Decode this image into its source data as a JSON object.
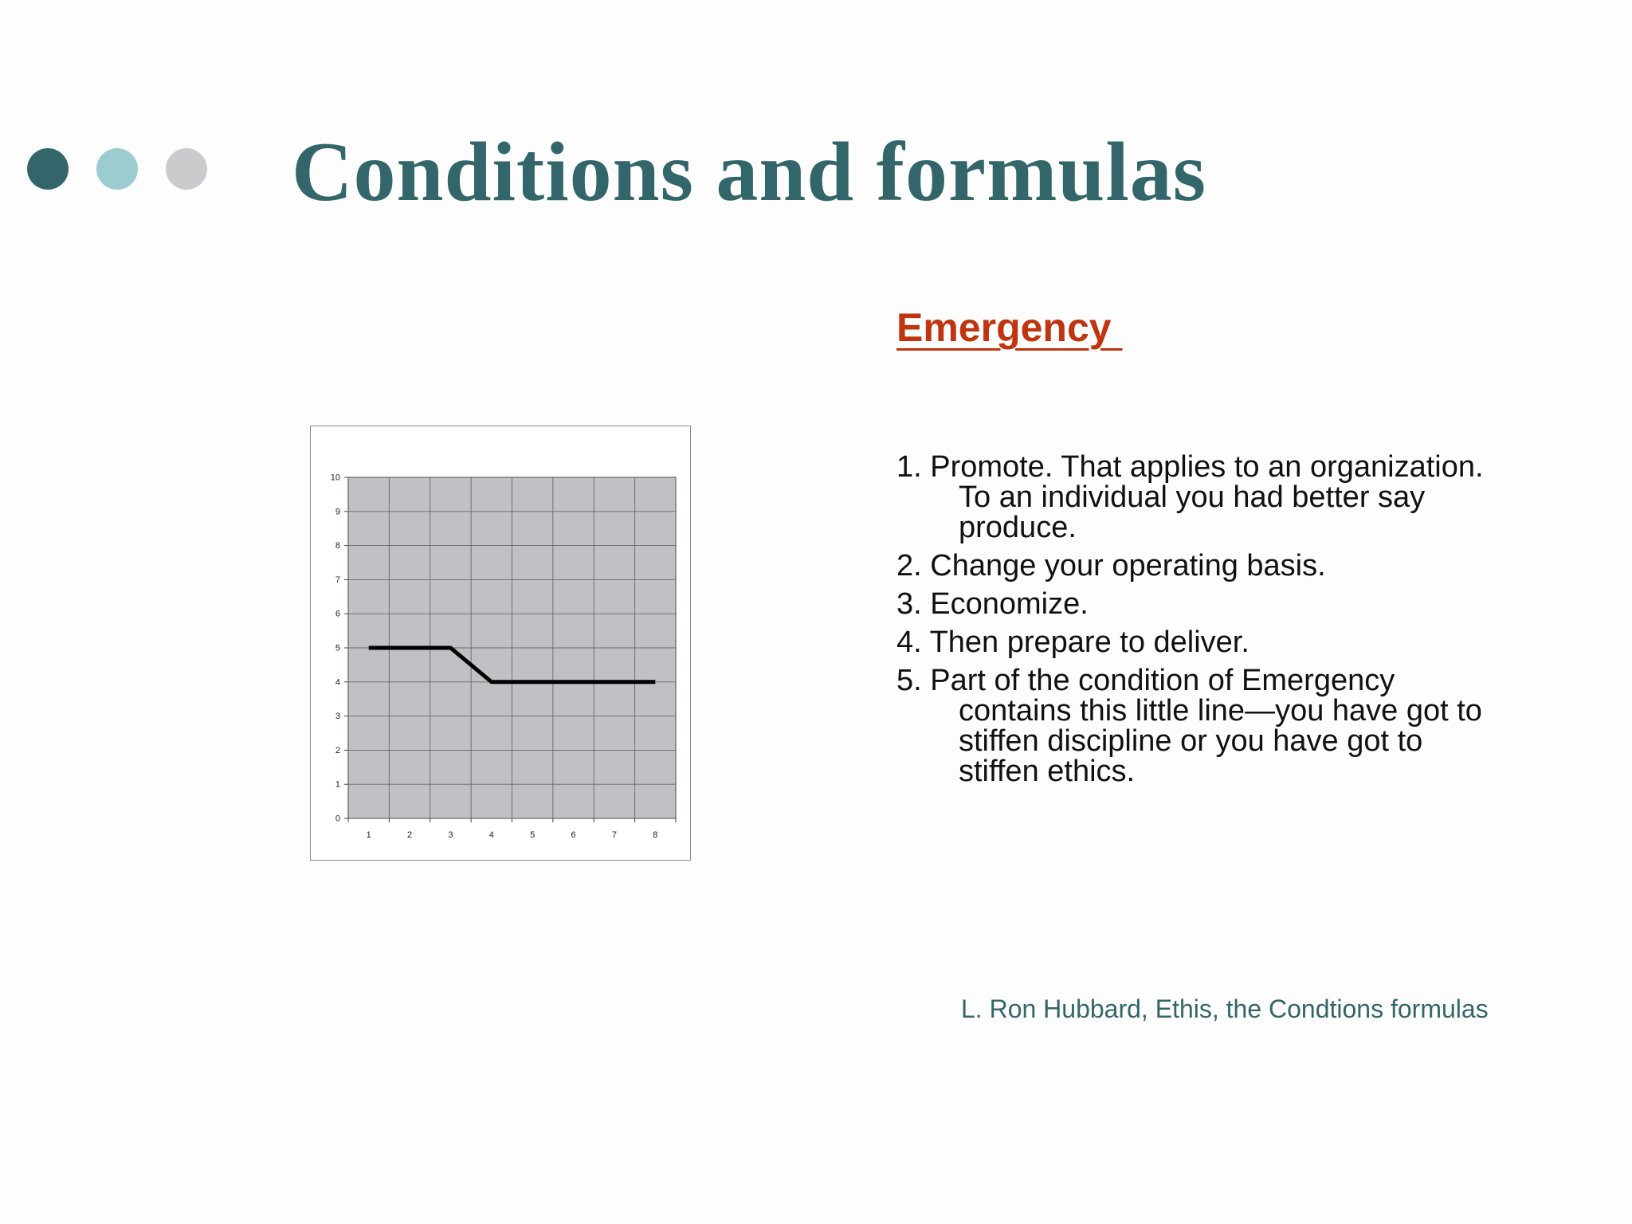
{
  "slide": {
    "title": "Conditions and formulas",
    "bullet_dot_colors": [
      "#33666a",
      "#9ccccf",
      "#cbcbcd"
    ],
    "accent_color": "#33666a",
    "heading_color": "#c0350f"
  },
  "content": {
    "heading": "Emergency ",
    "items": [
      {
        "num": "1. ",
        "first": "Promote. That applies to an organization.",
        "rest": [
          "To an individual you had better say",
          "produce."
        ]
      },
      {
        "num": "2. ",
        "first": "Change your operating basis.",
        "rest": []
      },
      {
        "num": "3. ",
        "first": "Economize.",
        "rest": []
      },
      {
        "num": "4. ",
        "first": "Then prepare to deliver.",
        "rest": []
      },
      {
        "num": "5. ",
        "first": "Part of the condition of Emergency",
        "rest": [
          "contains this little line—you have got to",
          "stiffen discipline or you have got to",
          "stiffen ethics."
        ]
      }
    ],
    "source": "L. Ron Hubbard, Ethis, the Condtions formulas"
  },
  "chart_data": {
    "type": "line",
    "title": "",
    "xlabel": "",
    "ylabel": "",
    "x": [
      1,
      2,
      3,
      4,
      5,
      6,
      7,
      8
    ],
    "series": [
      {
        "values": [
          5,
          5,
          5,
          4,
          4,
          4,
          4,
          4
        ]
      }
    ],
    "x_ticks": [
      "1",
      "2",
      "3",
      "4",
      "5",
      "6",
      "7",
      "8"
    ],
    "y_ticks": [
      "0",
      "1",
      "2",
      "3",
      "4",
      "5",
      "6",
      "7",
      "8",
      "9",
      "10"
    ],
    "ylim": [
      0,
      10
    ],
    "grid": true,
    "plot_background": "#c2c0c4",
    "line_color": "#000000"
  }
}
